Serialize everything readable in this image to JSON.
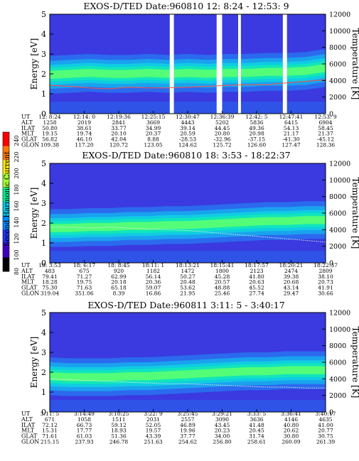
{
  "figure": {
    "colorbar": {
      "label": "Second Harmonic Current",
      "ticks": [
        "240",
        "220",
        "200",
        "180",
        "160",
        "140",
        "120",
        "100",
        "80"
      ]
    },
    "left_axis_label": "Energy [eV]",
    "right_axis_label": "Temperature [K]",
    "row_labels": [
      "UT",
      "ALT",
      "ILAT",
      "MLT",
      "GLAT",
      "GLON"
    ]
  },
  "chart_data": [
    {
      "type": "heatmap",
      "title": "EXOS-D/TED   Date:960810  12: 8:24 - 12:53: 9",
      "ylabel": "Energy [eV]",
      "y2label": "Temperature [K]",
      "ylim": [
        0,
        5
      ],
      "y2lim": [
        0,
        12000
      ],
      "yticks": [
        "0",
        "1",
        "2",
        "3",
        "4",
        "5"
      ],
      "y2ticks": [
        "0",
        "2000",
        "4000",
        "6000",
        "8000",
        "10000",
        "12000"
      ],
      "band_center": [
        1.95,
        2.0,
        2.05,
        2.0,
        2.0,
        2.05,
        2.0,
        2.05,
        2.0,
        2.05,
        2.05,
        2.1,
        2.1,
        2.15,
        2.3
      ],
      "temperature": [
        3400,
        3300,
        3100,
        3000,
        3200,
        3100,
        3100,
        3200,
        3300,
        3400,
        3500,
        3500,
        3700,
        3900,
        4100
      ],
      "gaps": [
        [
          0.435,
          0.45
        ],
        [
          0.605,
          0.625
        ],
        [
          0.683,
          0.693
        ],
        [
          0.845,
          0.86
        ]
      ],
      "table": {
        "UT": [
          "12: 8:24",
          "12:14: 0",
          "12:19:36",
          "12:25:15",
          "12:30:47",
          "12:36:39",
          "12:42: 5",
          "12:47:41",
          "12:53: 9"
        ],
        "ALT": [
          "1258",
          "2019",
          "2841",
          "3669",
          "4443",
          "5202",
          "5836",
          "6415",
          "6904"
        ],
        "ILAT": [
          "50.80",
          "38.61",
          "33.77",
          "34.99",
          "39.14",
          "44.45",
          "49.36",
          "54.13",
          "58.45"
        ],
        "MLT": [
          "19.15",
          "19.74",
          "20.10",
          "20.37",
          "20.59",
          "20.80",
          "20.98",
          "21.17",
          "21.37"
        ],
        "GLAT": [
          "56.82",
          "46.10",
          "42.04",
          "8.88",
          "-28.53",
          "-32.96",
          "-37.15",
          "-41.30",
          "-45.12"
        ],
        "GLON": [
          "109.38",
          "117.20",
          "120.72",
          "123.05",
          "124.62",
          "125.72",
          "126.60",
          "127.47",
          "128.36"
        ]
      }
    },
    {
      "type": "heatmap",
      "title": "EXOS-D/TED   Date:960810  18: 3:53 - 18:22:37",
      "ylabel": "Energy [eV]",
      "y2label": "Temperature [K]",
      "ylim": [
        0,
        5
      ],
      "y2lim": [
        0,
        12000
      ],
      "yticks": [
        "0",
        "1",
        "2",
        "3",
        "4",
        "5"
      ],
      "y2ticks": [
        "0",
        "2000",
        "4000",
        "6000",
        "8000",
        "10000",
        "12000"
      ],
      "band_center": [
        1.75,
        1.75,
        1.8,
        1.8,
        1.85,
        1.85,
        1.9,
        1.9,
        1.95,
        2.0,
        2.05,
        2.1,
        2.1,
        2.15,
        2.15
      ],
      "temperature": [
        4300,
        4300,
        4200,
        4300,
        4200,
        4100,
        4000,
        3900,
        3700,
        3500,
        3300,
        3100,
        2900,
        2700,
        2500
      ],
      "gaps": [],
      "table": {
        "UT": [
          "18: 3:53",
          "18: 6:17",
          "18: 8:45",
          "18:11: 1",
          "18:13:21",
          "18:15:41",
          "18:17:57",
          "18:20:21",
          "18:22:37"
        ],
        "ALT": [
          "483",
          "675",
          "920",
          "1182",
          "1472",
          "1800",
          "2123",
          "2474",
          "2809"
        ],
        "ILAT": [
          "79.41",
          "71.27",
          "62.99",
          "56.14",
          "50.27",
          "45.28",
          "41.80",
          "39.38",
          "38.10"
        ],
        "MLT": [
          "18.28",
          "19.75",
          "20.18",
          "20.36",
          "20.48",
          "20.57",
          "20.63",
          "20.68",
          "20.73"
        ],
        "GLAT": [
          "75.30",
          "71.63",
          "65.18",
          "59.07",
          "53.62",
          "48.88",
          "45.52",
          "43.14",
          "41.91"
        ],
        "GLON": [
          "319.04",
          "351.06",
          "8.39",
          "16.86",
          "21.95",
          "25.46",
          "27.74",
          "29.47",
          "30.66"
        ]
      }
    },
    {
      "type": "heatmap",
      "title": "EXOS-D/TED   Date:960811  3:11: 5 - 3:40:17",
      "ylabel": "Energy [eV]",
      "y2label": "Temperature [K]",
      "ylim": [
        0,
        5
      ],
      "y2lim": [
        0,
        12000
      ],
      "yticks": [
        "0",
        "1",
        "2",
        "3",
        "4",
        "5"
      ],
      "y2ticks": [
        "0",
        "2000",
        "4000",
        "6000",
        "8000",
        "10000",
        "12000"
      ],
      "band_center": [
        1.8,
        1.75,
        1.75,
        1.75,
        1.8,
        1.8,
        1.85,
        1.9,
        1.95,
        2.0,
        2.05,
        2.05,
        2.1,
        2.1,
        2.1
      ],
      "temperature": [
        4000,
        3900,
        3800,
        3700,
        3600,
        3500,
        3400,
        3400,
        3300,
        3200,
        3100,
        3000,
        3000,
        2900,
        2900
      ],
      "gaps": [],
      "table": {
        "UT": [
          "3:11: 5",
          "3:14:49",
          "3:18:25",
          "3:22: 9",
          "3:25:45",
          "3:29:21",
          "3:33: 5",
          "3:36:41",
          "3:40:17"
        ],
        "ALT": [
          "671",
          "1058",
          "1511",
          "2031",
          "2557",
          "3090",
          "3636",
          "4146",
          "4635"
        ],
        "ILAT": [
          "72.12",
          "66.73",
          "59.12",
          "52.05",
          "46.89",
          "43.45",
          "41.48",
          "40.80",
          "41.00"
        ],
        "MLT": [
          "15.31",
          "17.77",
          "18.93",
          "19.57",
          "19.96",
          "20.23",
          "20.45",
          "20.62",
          "20.77"
        ],
        "GLAT": [
          "71.61",
          "61.03",
          "51.36",
          "43.39",
          "37.77",
          "34.00",
          "31.74",
          "30.80",
          "30.75"
        ],
        "GLON": [
          "215.15",
          "237.93",
          "246.78",
          "251.63",
          "254.62",
          "256.80",
          "258.61",
          "260.09",
          "261.39"
        ]
      }
    }
  ]
}
